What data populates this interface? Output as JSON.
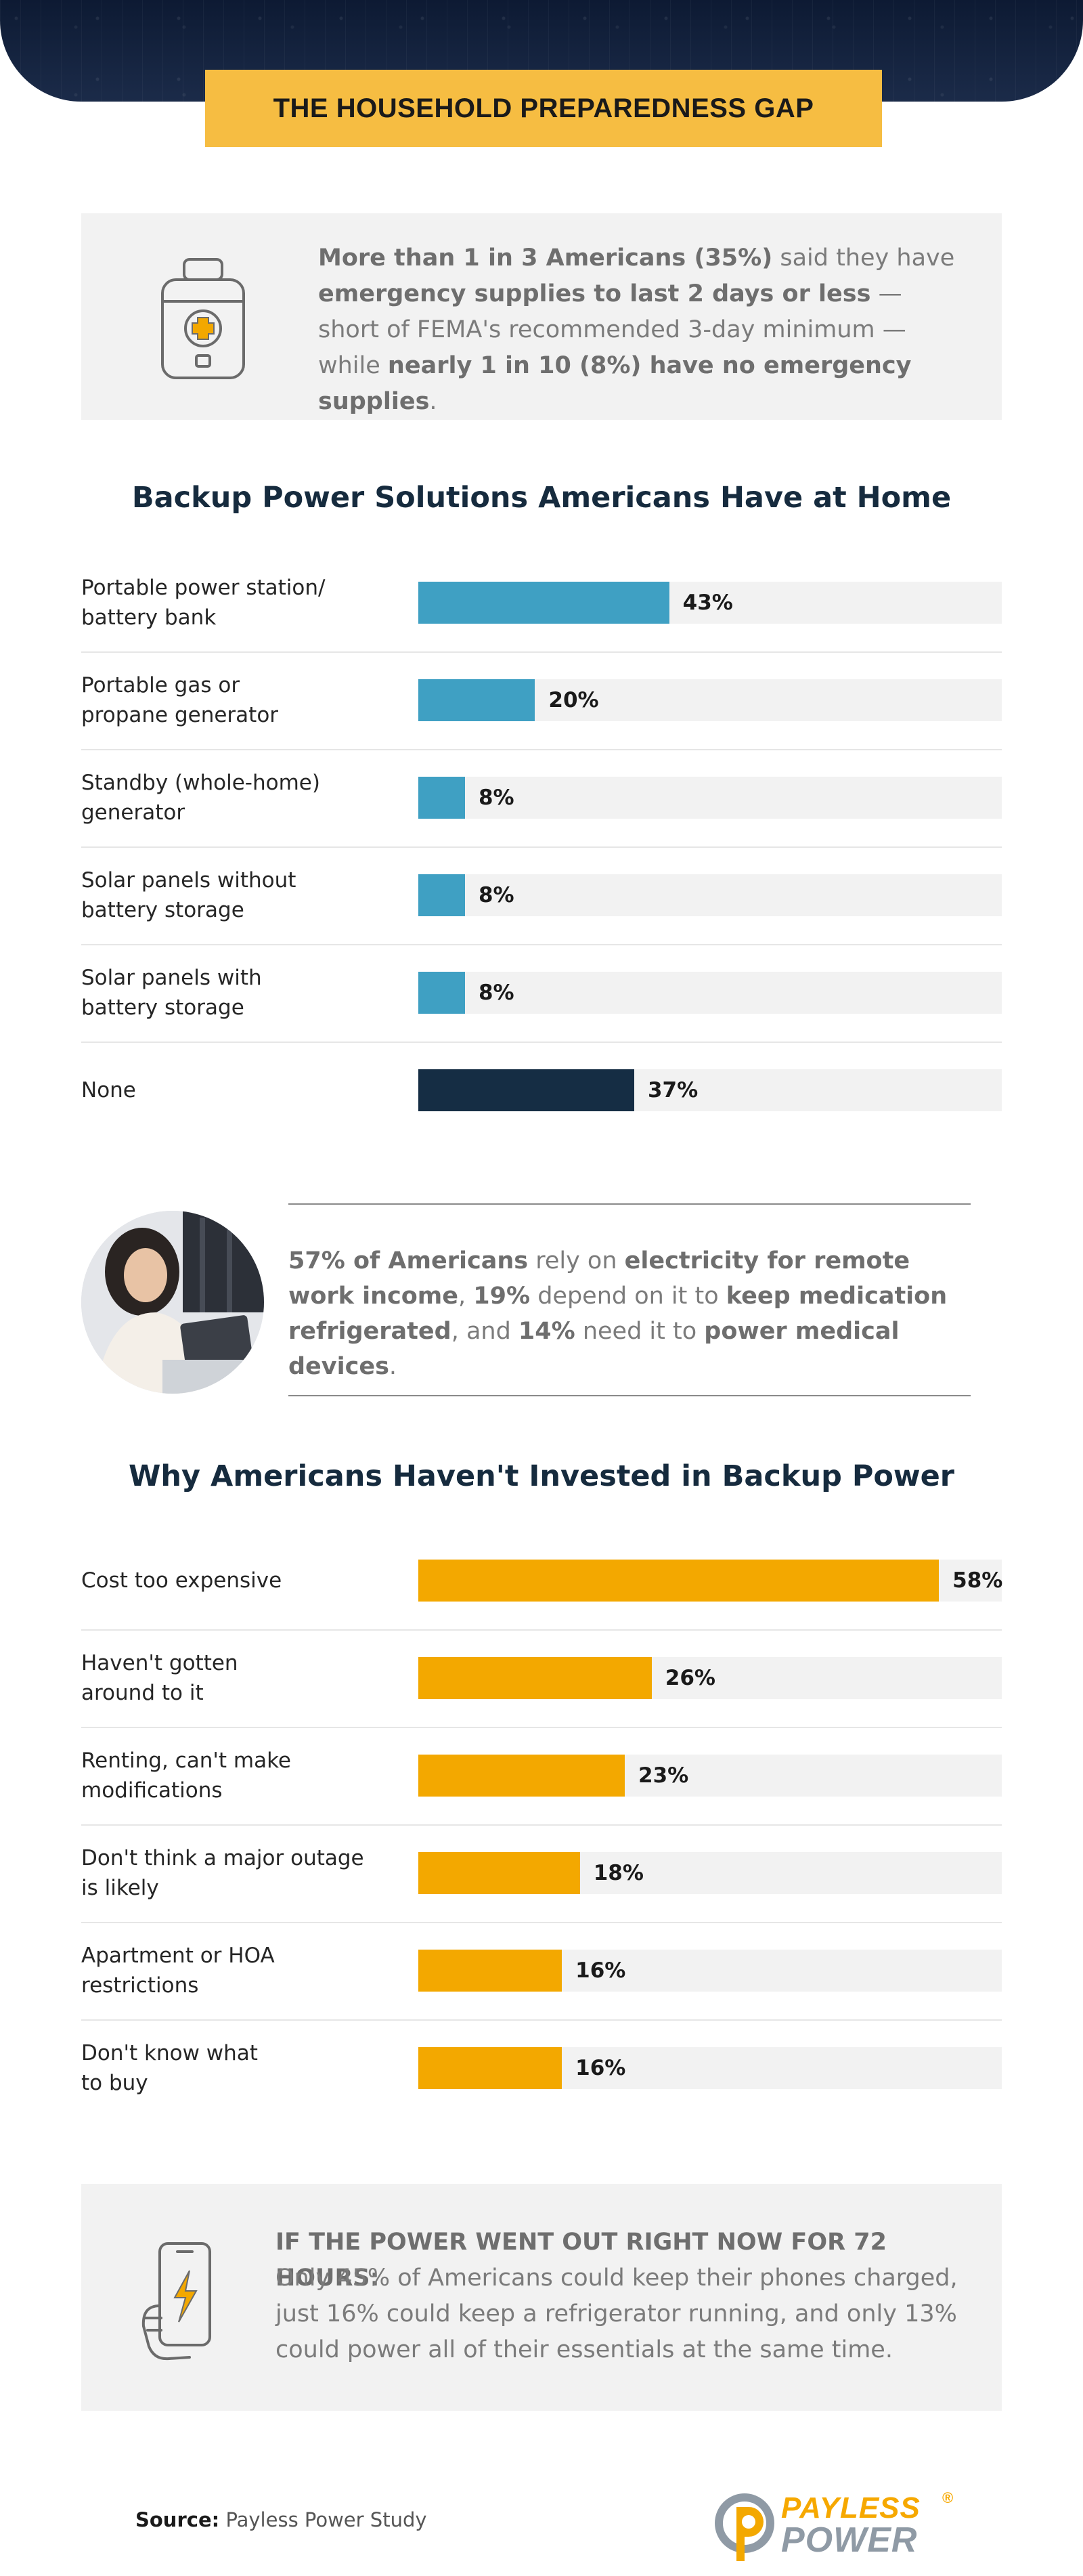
{
  "header": {
    "title": "THE HOUSEHOLD PREPAREDNESS GAP"
  },
  "callout_1": {
    "icon": "first-aid-kit-icon",
    "segments": [
      {
        "t": "More than 1 in 3 Americans (35%)",
        "b": true
      },
      {
        "t": " said they have ",
        "b": false
      },
      {
        "t": "emergency supplies to last 2 days or less",
        "b": true
      },
      {
        "t": " — short of FEMA's recommended 3-day minimum — while ",
        "b": false
      },
      {
        "t": "nearly 1 in 10 (8%) have no emergency supplies",
        "b": true
      },
      {
        "t": ".",
        "b": false
      }
    ]
  },
  "callout_2": {
    "segments": [
      {
        "t": "57% of Americans",
        "b": true
      },
      {
        "t": " rely on ",
        "b": false
      },
      {
        "t": "electricity for remote work income",
        "b": true
      },
      {
        "t": ", ",
        "b": false
      },
      {
        "t": "19%",
        "b": true
      },
      {
        "t": " depend on it to ",
        "b": false
      },
      {
        "t": "keep medication refrigerated",
        "b": true
      },
      {
        "t": ", and ",
        "b": false
      },
      {
        "t": "14%",
        "b": true
      },
      {
        "t": " need it to ",
        "b": false
      },
      {
        "t": "power medical devices",
        "b": true
      },
      {
        "t": ".",
        "b": false
      }
    ]
  },
  "callout_3": {
    "icon": "phone-charging-icon",
    "heading": "IF THE POWER WENT OUT RIGHT NOW FOR 72 HOURS:",
    "body": "Only 45% of Americans could keep their phones charged, just 16% could keep a refrigerator running, and only 13% could power all of their essentials at the same time."
  },
  "colors": {
    "blue": "#3fa0c3",
    "navy": "#152d44",
    "amber": "#f3a800",
    "title_bg": "#f6bd42",
    "track": "#f2f2f2"
  },
  "chart_data": [
    {
      "type": "bar",
      "orientation": "horizontal",
      "title": "Backup Power Solutions Americans Have at Home",
      "categories": [
        "Portable power station/ battery bank",
        "Portable gas or propane generator",
        "Standby (whole-home) generator",
        "Solar panels without battery storage",
        "Solar panels with battery storage",
        "None"
      ],
      "label_lines": [
        [
          "Portable power station/",
          "battery bank"
        ],
        [
          "Portable gas or",
          "propane generator"
        ],
        [
          "Standby (whole-home)",
          "generator"
        ],
        [
          "Solar panels without",
          "battery storage"
        ],
        [
          "Solar panels with",
          "battery storage"
        ],
        [
          "None"
        ]
      ],
      "values": [
        43,
        20,
        8,
        8,
        8,
        37
      ],
      "value_labels": [
        "43%",
        "20%",
        "8%",
        "8%",
        "8%",
        "37%"
      ],
      "bar_colors": [
        "#3fa0c3",
        "#3fa0c3",
        "#3fa0c3",
        "#3fa0c3",
        "#3fa0c3",
        "#152d44"
      ],
      "xlim": [
        0,
        100
      ]
    },
    {
      "type": "bar",
      "orientation": "horizontal",
      "title": "Why Americans Haven't Invested in Backup Power",
      "categories": [
        "Cost too expensive",
        "Haven't gotten around to it",
        "Renting, can't make modifications",
        "Don't think a major outage is likely",
        "Apartment or HOA restrictions",
        "Don't know what to buy"
      ],
      "label_lines": [
        [
          "Cost too expensive"
        ],
        [
          "Haven't gotten",
          "around to it"
        ],
        [
          "Renting, can't make",
          "modifications"
        ],
        [
          "Don't think a major outage",
          "is likely"
        ],
        [
          "Apartment or HOA",
          "restrictions"
        ],
        [
          "Don't know what",
          "to buy"
        ]
      ],
      "values": [
        58,
        26,
        23,
        18,
        16,
        16
      ],
      "value_labels": [
        "58%",
        "26%",
        "23%",
        "18%",
        "16%",
        "16%"
      ],
      "bar_colors": [
        "#f3a800",
        "#f3a800",
        "#f3a800",
        "#f3a800",
        "#f3a800",
        "#f3a800"
      ],
      "xlim": [
        0,
        65
      ]
    }
  ],
  "footer": {
    "source_label": "Source:",
    "source_text": "Payless Power Study",
    "logo_line1": "PAYLESS",
    "logo_line2": "POWER",
    "logo_mark": "®"
  }
}
